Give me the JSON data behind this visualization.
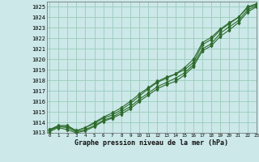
{
  "title": "Graphe pression niveau de la mer (hPa)",
  "bg_color": "#cce8e8",
  "grid_color": "#99ccbb",
  "line_color": "#2d6b2d",
  "xlim": [
    -0.3,
    23
  ],
  "ylim": [
    1013.0,
    1025.5
  ],
  "yticks": [
    1013,
    1014,
    1015,
    1016,
    1017,
    1018,
    1019,
    1020,
    1021,
    1022,
    1023,
    1024,
    1025
  ],
  "xticks": [
    0,
    1,
    2,
    3,
    4,
    5,
    6,
    7,
    8,
    9,
    10,
    11,
    12,
    13,
    14,
    15,
    16,
    17,
    18,
    19,
    20,
    21,
    22,
    23
  ],
  "series": [
    [
      1013.3,
      1013.7,
      1013.7,
      1013.2,
      1013.5,
      1014.0,
      1014.5,
      1014.9,
      1015.4,
      1016.0,
      1016.7,
      1017.3,
      1017.9,
      1018.3,
      1018.6,
      1019.2,
      1020.0,
      1021.6,
      1022.1,
      1022.9,
      1023.5,
      1024.0,
      1025.0,
      1025.3
    ],
    [
      1013.3,
      1013.6,
      1013.6,
      1013.2,
      1013.5,
      1013.9,
      1014.4,
      1014.7,
      1015.2,
      1015.8,
      1016.5,
      1017.2,
      1017.8,
      1018.2,
      1018.6,
      1019.0,
      1019.7,
      1021.4,
      1021.9,
      1022.8,
      1023.4,
      1024.0,
      1024.9,
      1025.2
    ],
    [
      1013.2,
      1013.6,
      1013.5,
      1013.1,
      1013.3,
      1013.7,
      1014.2,
      1014.5,
      1015.0,
      1015.5,
      1016.2,
      1016.8,
      1017.4,
      1017.8,
      1018.2,
      1018.7,
      1019.5,
      1021.0,
      1021.5,
      1022.5,
      1023.1,
      1023.7,
      1024.7,
      1025.1
    ],
    [
      1013.1,
      1013.5,
      1013.3,
      1013.0,
      1013.2,
      1013.6,
      1014.1,
      1014.4,
      1014.8,
      1015.3,
      1016.0,
      1016.6,
      1017.2,
      1017.6,
      1017.9,
      1018.5,
      1019.3,
      1020.8,
      1021.3,
      1022.2,
      1022.8,
      1023.5,
      1024.5,
      1025.0
    ]
  ]
}
